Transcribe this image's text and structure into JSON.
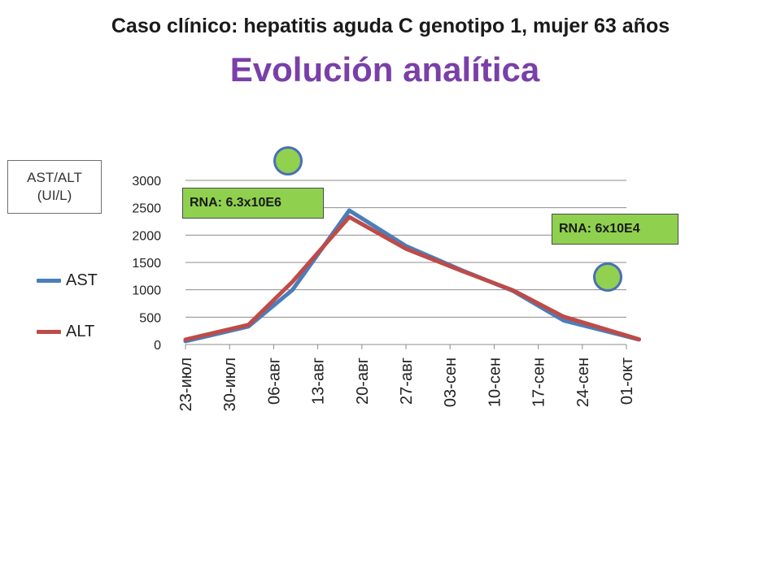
{
  "header": {
    "title": "Caso clínico: hepatitis aguda C genotipo 1, mujer 63 años",
    "subtitle": "Evolución analítica"
  },
  "axis_box": {
    "line1": "AST/ALT",
    "line2": "(UI/L)"
  },
  "annotations": {
    "rna_first": "RNA: 6.3x10E6",
    "rna_second": "RNA: 6x10E4"
  },
  "colors": {
    "title_accent": "#7a3fa8",
    "ast": "#4a7ebb",
    "alt": "#be4b48",
    "callout_fill": "#8fd14f",
    "marker_fill": "#92d050",
    "marker_border": "#4a6fb5"
  },
  "chart_data": {
    "type": "line",
    "title": "",
    "xlabel": "",
    "ylabel": "AST/ALT (UI/L)",
    "categories": [
      "23-июл",
      "30-июл",
      "06-авг",
      "13-авг",
      "20-авг",
      "27-авг",
      "03-сен",
      "10-сен",
      "17-сен",
      "24-сен",
      "01-окт"
    ],
    "x_dates": [
      "2012-07-23",
      "2012-07-30",
      "2012-08-06",
      "2012-08-13",
      "2012-08-20",
      "2012-08-27",
      "2012-09-03",
      "2012-09-10",
      "2012-09-17",
      "2012-09-24",
      "2012-10-01"
    ],
    "ylim": [
      0,
      3000
    ],
    "yticks": [
      0,
      500,
      1000,
      1500,
      2000,
      2500,
      3000
    ],
    "grid": true,
    "legend_position": "left",
    "series": [
      {
        "name": "AST",
        "color": "#4a7ebb",
        "points": [
          {
            "x": "2012-07-23",
            "y": 60
          },
          {
            "x": "2012-08-02",
            "y": 330
          },
          {
            "x": "2012-08-09",
            "y": 1000
          },
          {
            "x": "2012-08-18",
            "y": 2450
          },
          {
            "x": "2012-08-27",
            "y": 1800
          },
          {
            "x": "2012-09-05",
            "y": 1350
          },
          {
            "x": "2012-09-13",
            "y": 980
          },
          {
            "x": "2012-09-21",
            "y": 440
          },
          {
            "x": "2012-10-03",
            "y": 90
          }
        ]
      },
      {
        "name": "ALT",
        "color": "#be4b48",
        "points": [
          {
            "x": "2012-07-23",
            "y": 90
          },
          {
            "x": "2012-08-02",
            "y": 360
          },
          {
            "x": "2012-08-09",
            "y": 1150
          },
          {
            "x": "2012-08-18",
            "y": 2330
          },
          {
            "x": "2012-08-27",
            "y": 1750
          },
          {
            "x": "2012-09-05",
            "y": 1340
          },
          {
            "x": "2012-09-13",
            "y": 990
          },
          {
            "x": "2012-09-21",
            "y": 510
          },
          {
            "x": "2012-10-03",
            "y": 95
          }
        ]
      }
    ]
  }
}
